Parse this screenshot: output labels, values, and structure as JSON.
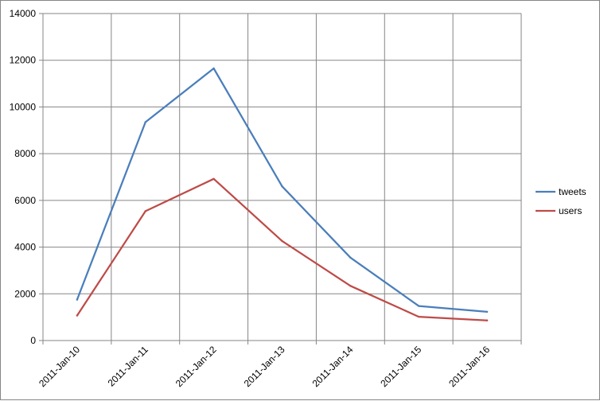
{
  "chart_data": {
    "type": "line",
    "title": "",
    "xlabel": "",
    "ylabel": "",
    "categories": [
      "2011-Jan-10",
      "2011-Jan-11",
      "2011-Jan-12",
      "2011-Jan-13",
      "2011-Jan-14",
      "2011-Jan-15",
      "2011-Jan-16"
    ],
    "ylim": [
      0,
      14000
    ],
    "yticks": [
      0,
      2000,
      4000,
      6000,
      8000,
      10000,
      12000,
      14000
    ],
    "grid": true,
    "legend": "right",
    "series": [
      {
        "name": "tweets",
        "color": "#4a7ebb",
        "values": [
          1750,
          9350,
          11650,
          6600,
          3550,
          1480,
          1230
        ]
      },
      {
        "name": "users",
        "color": "#be4b48",
        "values": [
          1070,
          5540,
          6920,
          4260,
          2340,
          1020,
          860
        ]
      }
    ]
  }
}
